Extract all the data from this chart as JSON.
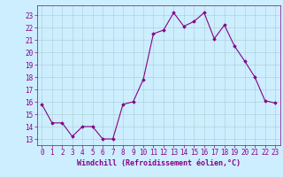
{
  "x": [
    0,
    1,
    2,
    3,
    4,
    5,
    6,
    7,
    8,
    9,
    10,
    11,
    12,
    13,
    14,
    15,
    16,
    17,
    18,
    19,
    20,
    21,
    22,
    23
  ],
  "y": [
    15.8,
    14.3,
    14.3,
    13.2,
    14.0,
    14.0,
    13.0,
    13.0,
    15.8,
    16.0,
    17.8,
    21.5,
    21.8,
    23.2,
    22.1,
    22.5,
    23.2,
    21.1,
    22.2,
    20.5,
    19.3,
    18.0,
    16.1,
    15.9
  ],
  "line_color": "#880088",
  "marker": "D",
  "marker_size": 1.8,
  "linewidth": 0.8,
  "bg_color": "#cceeff",
  "grid_color": "#aacccc",
  "xlabel": "Windchill (Refroidissement éolien,°C)",
  "xlabel_fontsize": 6.0,
  "xtick_labels": [
    "0",
    "1",
    "2",
    "3",
    "4",
    "5",
    "6",
    "7",
    "8",
    "9",
    "10",
    "11",
    "12",
    "13",
    "14",
    "15",
    "16",
    "17",
    "18",
    "19",
    "20",
    "21",
    "22",
    "23"
  ],
  "ytick_values": [
    13,
    14,
    15,
    16,
    17,
    18,
    19,
    20,
    21,
    22,
    23
  ],
  "ylim": [
    12.5,
    23.8
  ],
  "xlim": [
    -0.5,
    23.5
  ],
  "tick_fontsize": 5.5,
  "label_color": "#880088"
}
